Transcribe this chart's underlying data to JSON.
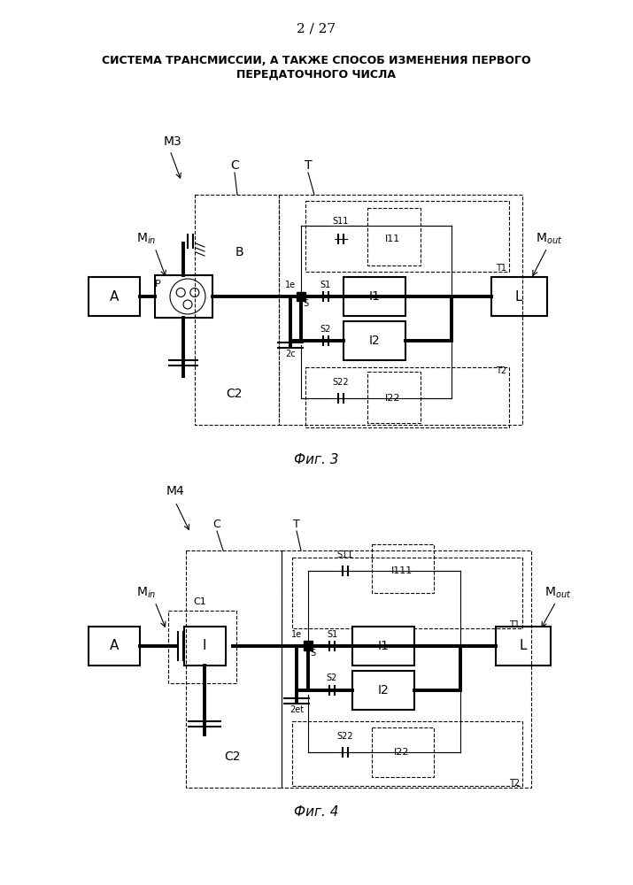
{
  "page_number": "2 / 27",
  "title_line1": "СИСТЕМА ТРАНСМИССИИ, А ТАКЖЕ СПОСОБ ИЗМЕНЕНИЯ ПЕРВОГО",
  "title_line2": "ПЕРЕДАТОЧНОГО ЧИСЛА",
  "fig3_label": "Фиг. 3",
  "fig4_label": "Фиг. 4",
  "bg_color": "#ffffff",
  "line_color": "#000000"
}
